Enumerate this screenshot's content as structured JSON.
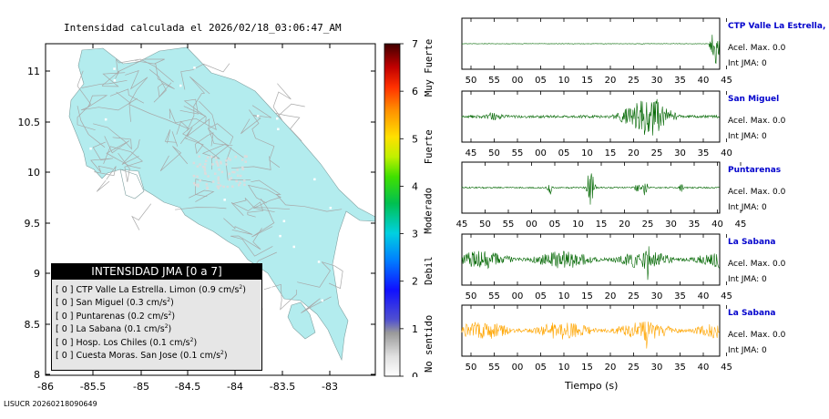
{
  "map": {
    "title": "Intensidad calculada el 2026/02/18_03:06:47_AM",
    "lat_ticks": [
      "11",
      "10.5",
      "10",
      "9.5",
      "9",
      "8.5",
      "8"
    ],
    "lon_ticks": [
      "-86",
      "-85.5",
      "-85",
      "-84.5",
      "-84",
      "-83.5",
      "-83"
    ],
    "footer": "LISUCR 20260218090649",
    "land_color": "#b3ecee"
  },
  "legend": {
    "title": "INTENSIDAD JMA [0 a 7]",
    "items": [
      {
        "text": "[ 0 ]  CTP Valle La Estrella. Limon (0.9 cm/s",
        "sup": "2",
        "tail": ")"
      },
      {
        "text": "[ 0 ]  San Miguel (0.3 cm/s",
        "sup": "2",
        "tail": ")"
      },
      {
        "text": "[ 0 ]  Puntarenas (0.2 cm/s",
        "sup": "2",
        "tail": ")"
      },
      {
        "text": "[ 0 ]  La Sabana (0.1 cm/s",
        "sup": "2",
        "tail": ")"
      },
      {
        "text": "[ 0 ]  Hosp. Los Chiles (0.1 cm/s",
        "sup": "2",
        "tail": ")"
      },
      {
        "text": "[ 0 ]  Cuesta Moras. San Jose (0.1 cm/s",
        "sup": "2",
        "tail": ")"
      }
    ]
  },
  "scale": {
    "ticks": [
      "7",
      "6",
      "5",
      "4",
      "3",
      "2",
      "1",
      "0"
    ],
    "labels": [
      "Muy Fuerte",
      "Fuerte",
      "Moderado",
      "Debil",
      "No sentido"
    ]
  },
  "stations": [
    {
      "name": "CTP Valle La Estrella, L",
      "acel": "Acel. Max. 0.0",
      "int": "Int JMA: 0",
      "ticks": [
        "50",
        "55",
        "00",
        "05",
        "10",
        "15",
        "20",
        "25",
        "30",
        "35",
        "40",
        "45"
      ],
      "color": "#006600",
      "profile": "end-burst"
    },
    {
      "name": "San Miguel",
      "acel": "Acel. Max. 0.0",
      "int": "Int JMA: 0",
      "ticks": [
        "45",
        "50",
        "55",
        "00",
        "05",
        "10",
        "15",
        "20",
        "25",
        "30",
        "35",
        "40"
      ],
      "color": "#006600",
      "profile": "mid-burst"
    },
    {
      "name": "Puntarenas",
      "acel": "Acel. Max. 0.0",
      "int": "Int JMA: 0",
      "ticks": [
        "45",
        "50",
        "55",
        "00",
        "05",
        "10",
        "15",
        "20",
        "25",
        "30",
        "35",
        "40",
        "45"
      ],
      "color": "#006600",
      "profile": "spikes"
    },
    {
      "name": "La Sabana",
      "acel": "Acel. Max. 0.0",
      "int": "Int JMA: 0",
      "ticks": [
        "50",
        "55",
        "00",
        "05",
        "10",
        "15",
        "20",
        "25",
        "30",
        "35",
        "40",
        "45"
      ],
      "color": "#006600",
      "profile": "noise"
    },
    {
      "name": "La Sabana",
      "acel": "Acel. Max. 0.0",
      "int": "Int JMA: 0",
      "ticks": [
        "50",
        "55",
        "00",
        "05",
        "10",
        "15",
        "20",
        "25",
        "30",
        "35",
        "40",
        "45"
      ],
      "color": "#ffa500",
      "profile": "noise"
    }
  ],
  "time_axis_label": "Tiempo (s)"
}
